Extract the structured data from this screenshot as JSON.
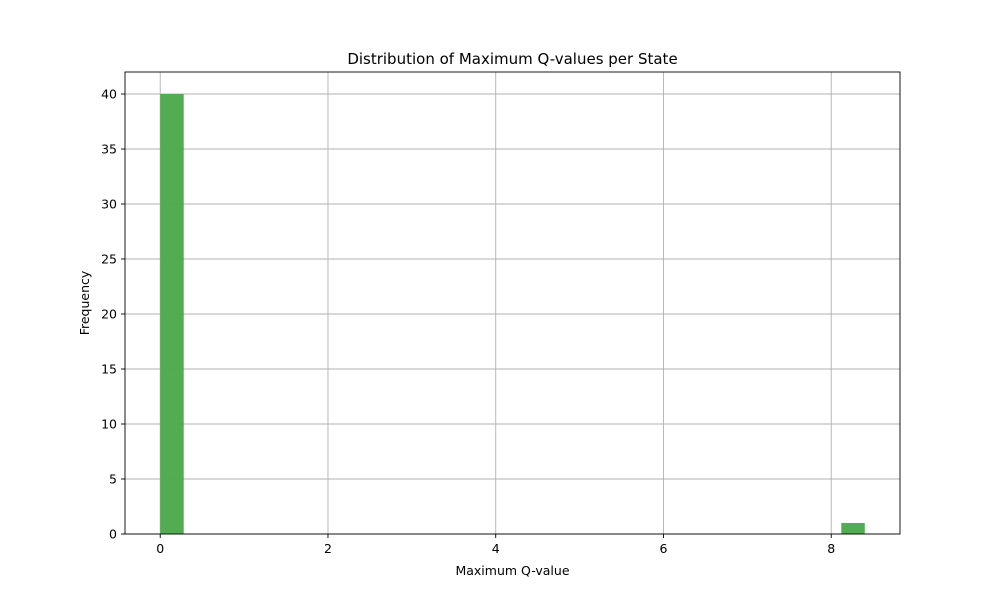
{
  "chart_data": {
    "type": "bar",
    "title": "Distribution of Maximum Q-values per State",
    "xlabel": "Maximum Q-value",
    "ylabel": "Frequency",
    "xlim": [
      -0.42,
      8.82
    ],
    "ylim": [
      0,
      42
    ],
    "xticks": [
      0,
      2,
      4,
      6,
      8
    ],
    "yticks": [
      0,
      5,
      10,
      15,
      20,
      25,
      30,
      35,
      40
    ],
    "grid": true,
    "bar_color": "#4caa4c",
    "bins": [
      {
        "start": 0.0,
        "end": 0.28,
        "count": 40
      },
      {
        "start": 8.12,
        "end": 8.4,
        "count": 1
      }
    ]
  }
}
